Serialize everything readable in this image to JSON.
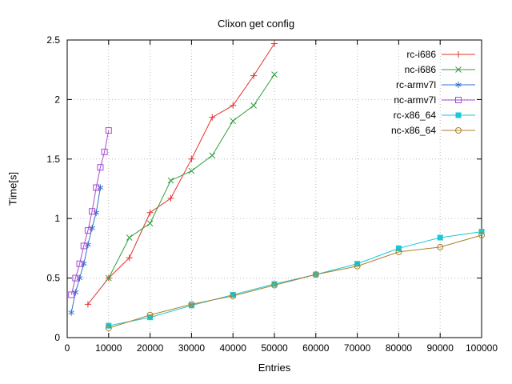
{
  "chart_data": {
    "type": "line",
    "title": "Clixon get config",
    "xlabel": "Entries",
    "ylabel": "Time[s]",
    "xlim": [
      0,
      100000
    ],
    "ylim": [
      0,
      2.5
    ],
    "x_ticks": [
      0,
      10000,
      20000,
      30000,
      40000,
      50000,
      60000,
      70000,
      80000,
      90000,
      100000
    ],
    "y_ticks": [
      0,
      0.5,
      1,
      1.5,
      2,
      2.5
    ],
    "grid": true,
    "legend_position": "top-right",
    "series": [
      {
        "name": "rc-i686",
        "color": "#e0322a",
        "marker": "plus",
        "x": [
          5000,
          10000,
          15000,
          20000,
          25000,
          30000,
          35000,
          40000,
          45000,
          50000
        ],
        "y": [
          0.28,
          0.5,
          0.67,
          1.05,
          1.17,
          1.5,
          1.85,
          1.95,
          2.2,
          2.47
        ]
      },
      {
        "name": "nc-i686",
        "color": "#2f9e3a",
        "marker": "cross",
        "x": [
          10000,
          15000,
          20000,
          25000,
          30000,
          35000,
          40000,
          45000,
          50000
        ],
        "y": [
          0.5,
          0.84,
          0.96,
          1.32,
          1.4,
          1.53,
          1.82,
          1.95,
          2.21
        ]
      },
      {
        "name": "rc-armv7l",
        "color": "#2f6fd0",
        "marker": "asterisk",
        "x": [
          1000,
          2000,
          3000,
          4000,
          5000,
          6000,
          7000,
          8000
        ],
        "y": [
          0.21,
          0.38,
          0.5,
          0.62,
          0.78,
          0.92,
          1.05,
          1.26
        ]
      },
      {
        "name": "nc-armv7l",
        "color": "#a74ad4",
        "marker": "square-open",
        "x": [
          1000,
          2000,
          3000,
          4000,
          5000,
          6000,
          7000,
          8000,
          9000,
          10000
        ],
        "y": [
          0.36,
          0.5,
          0.62,
          0.77,
          0.9,
          1.06,
          1.26,
          1.43,
          1.56,
          1.74
        ]
      },
      {
        "name": "rc-x86_64",
        "color": "#17c9d6",
        "marker": "square-filled",
        "x": [
          10000,
          20000,
          30000,
          40000,
          50000,
          60000,
          70000,
          80000,
          90000,
          100000
        ],
        "y": [
          0.1,
          0.17,
          0.27,
          0.36,
          0.45,
          0.53,
          0.62,
          0.75,
          0.84,
          0.89
        ]
      },
      {
        "name": "nc-x86_64",
        "color": "#ad7f2a",
        "marker": "circle-open",
        "x": [
          10000,
          20000,
          30000,
          40000,
          50000,
          60000,
          70000,
          80000,
          90000,
          100000
        ],
        "y": [
          0.08,
          0.19,
          0.28,
          0.35,
          0.44,
          0.53,
          0.6,
          0.72,
          0.76,
          0.86
        ]
      }
    ]
  }
}
